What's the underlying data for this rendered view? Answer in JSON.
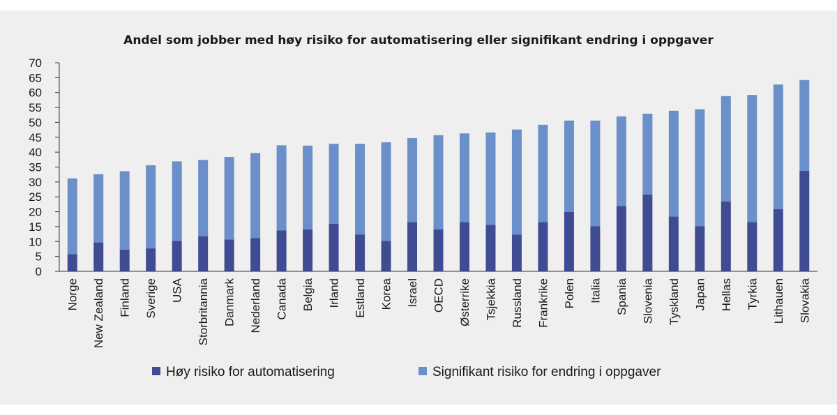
{
  "chart_data": {
    "type": "bar",
    "stacked": true,
    "title": "Andel som jobber med høy risiko for automatisering eller signifikant endring i oppgaver",
    "xlabel": "",
    "ylabel": "",
    "ylim": [
      0,
      70
    ],
    "yticks": [
      0,
      5,
      10,
      15,
      20,
      25,
      30,
      35,
      40,
      45,
      50,
      55,
      60,
      65,
      70
    ],
    "grid": false,
    "legend_position": "bottom",
    "categories": [
      "Norge",
      "New Zealand",
      "Finland",
      "Sverige",
      "USA",
      "Storbritannia",
      "Danmark",
      "Nederland",
      "Canada",
      "Belgia",
      "Irland",
      "Estland",
      "Korea",
      "Israel",
      "OECD",
      "Østerrike",
      "Tsjekkia",
      "Russland",
      "Frankrike",
      "Polen",
      "Italia",
      "Spania",
      "Slovenia",
      "Tyskland",
      "Japan",
      "Hellas",
      "Tyrkia",
      "Lithauen",
      "Slovakia"
    ],
    "series": [
      {
        "name": "Høy risiko for automatisering",
        "color": "#3f4c93",
        "values": [
          5.8,
          9.7,
          7.3,
          7.7,
          10.2,
          11.8,
          10.7,
          11.2,
          13.7,
          14.1,
          16.0,
          12.3,
          10.2,
          16.5,
          14.1,
          16.5,
          15.6,
          12.3,
          16.5,
          19.9,
          15.1,
          21.9,
          25.8,
          18.4,
          15.1,
          23.4,
          16.5,
          20.9,
          33.7
        ]
      },
      {
        "name": "Signifikant risiko for endring i oppgaver",
        "color": "#6b8fc8",
        "values": [
          25.4,
          22.9,
          26.3,
          27.9,
          26.7,
          25.6,
          27.7,
          28.5,
          28.6,
          28.1,
          26.8,
          30.5,
          33.1,
          28.2,
          31.6,
          29.8,
          31.0,
          35.3,
          32.7,
          30.7,
          35.5,
          30.1,
          27.1,
          35.5,
          39.3,
          35.4,
          42.7,
          41.8,
          30.5
        ]
      }
    ]
  }
}
